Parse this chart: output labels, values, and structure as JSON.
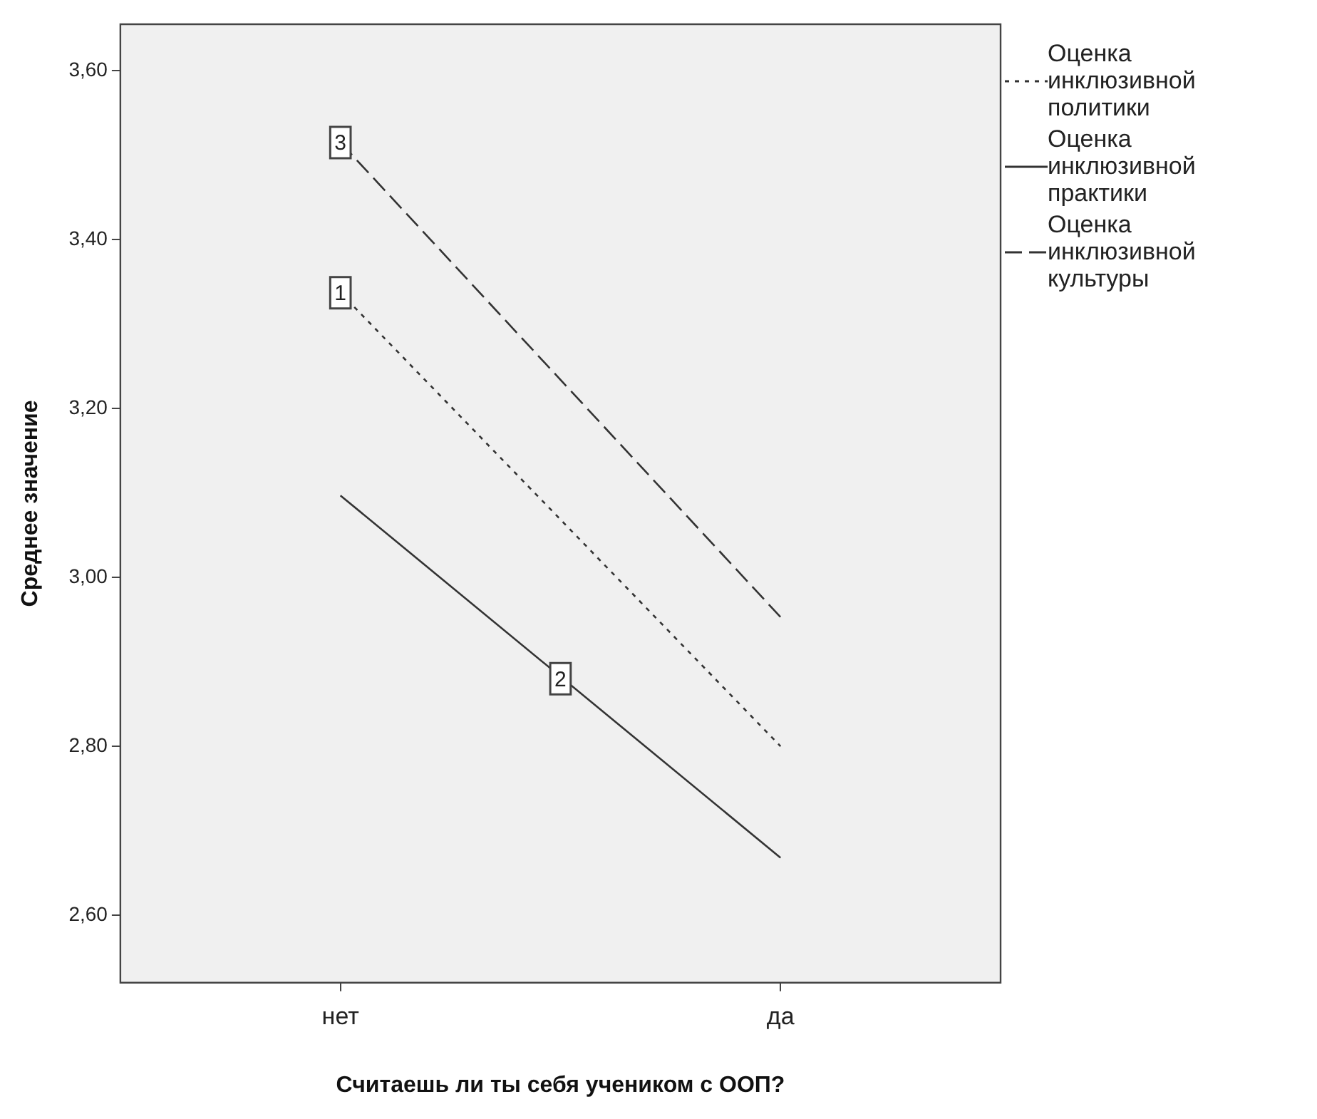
{
  "chart_data": {
    "type": "line",
    "xlabel": "Считаешь ли ты себя учеником с ООП?",
    "ylabel": "Среднее значение",
    "categories": [
      "нет",
      "да"
    ],
    "series": [
      {
        "name": "Оценка инклюзивной политики",
        "color": "#333333",
        "line_style": "dotted",
        "values": [
          3.337,
          2.8
        ]
      },
      {
        "name": "Оценка инклюзивной практики",
        "color": "#333333",
        "line_style": "solid",
        "values": [
          3.097,
          2.668
        ]
      },
      {
        "name": "Оценка инклюзивной культуры",
        "color": "#333333",
        "line_style": "dashed",
        "values": [
          3.515,
          2.953
        ]
      }
    ],
    "annotations": [
      {
        "text": "3",
        "x": "нет",
        "y": 3.515
      },
      {
        "text": "1",
        "x": "нет",
        "y": 3.337
      },
      {
        "text": "2",
        "y": 2.88
      }
    ],
    "ylim": [
      2.52,
      3.655
    ],
    "yticks": [
      {
        "value": 2.6,
        "label": "2,60"
      },
      {
        "value": 2.8,
        "label": "2,80"
      },
      {
        "value": 3.0,
        "label": "3,00"
      },
      {
        "value": 3.2,
        "label": "3,20"
      },
      {
        "value": 3.4,
        "label": "3,40"
      },
      {
        "value": 3.6,
        "label": "3,60"
      }
    ],
    "legend": "right"
  }
}
